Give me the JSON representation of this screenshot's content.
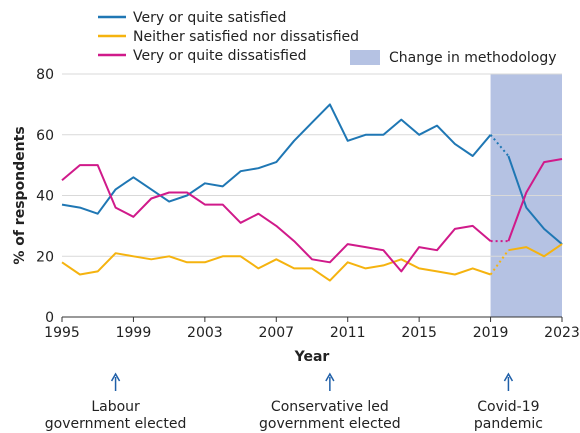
{
  "chart_data": {
    "type": "line",
    "xlabel": "Year",
    "ylabel": "% of respondents",
    "xlim": [
      1995,
      2023
    ],
    "ylim": [
      0,
      80
    ],
    "x_ticks": [
      1995,
      1999,
      2003,
      2007,
      2011,
      2015,
      2019,
      2023
    ],
    "y_ticks": [
      0,
      20,
      40,
      60,
      80
    ],
    "grid": "horizontal",
    "legend_placement": "top",
    "x": [
      1995,
      1996,
      1997,
      1998,
      1999,
      2000,
      2001,
      2002,
      2003,
      2004,
      2005,
      2006,
      2007,
      2008,
      2009,
      2010,
      2011,
      2012,
      2013,
      2014,
      2015,
      2016,
      2017,
      2018,
      2019,
      2020,
      2021,
      2022,
      2023
    ],
    "methodology_change_start_index": 24,
    "series": [
      {
        "name": "Very or quite satisfied",
        "color": "#1f77b4",
        "values": [
          37,
          36,
          34,
          42,
          46,
          42,
          38,
          40,
          44,
          43,
          48,
          49,
          51,
          58,
          64,
          70,
          58,
          60,
          60,
          65,
          60,
          63,
          57,
          53,
          60,
          53,
          36,
          29,
          24
        ]
      },
      {
        "name": "Neither satisfied nor dissatisfied",
        "color": "#f5b30f",
        "values": [
          18,
          14,
          15,
          21,
          20,
          19,
          20,
          18,
          18,
          20,
          20,
          16,
          19,
          16,
          16,
          12,
          18,
          16,
          17,
          19,
          16,
          15,
          14,
          16,
          14,
          22,
          23,
          20,
          24
        ]
      },
      {
        "name": "Very or quite dissatisfied",
        "color": "#d01a8a",
        "values": [
          45,
          50,
          50,
          36,
          33,
          39,
          41,
          41,
          37,
          37,
          31,
          34,
          30,
          25,
          19,
          18,
          24,
          23,
          22,
          15,
          23,
          22,
          29,
          30,
          25,
          25,
          41,
          51,
          52
        ]
      }
    ],
    "shaded_region": {
      "label": "Change in methodology",
      "x_range": [
        2019,
        2023
      ],
      "color": "#b5c2e3"
    },
    "annotations": [
      {
        "x": 1998,
        "lines": [
          "Labour",
          "government elected"
        ]
      },
      {
        "x": 2010,
        "lines": [
          "Conservative led",
          "government elected"
        ]
      },
      {
        "x": 2020,
        "lines": [
          "Covid-19",
          "pandemic"
        ]
      }
    ]
  }
}
